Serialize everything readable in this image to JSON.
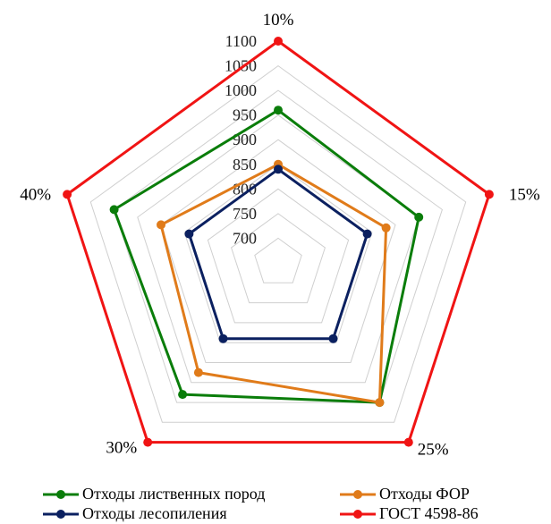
{
  "chart_data": {
    "type": "radar",
    "categories": [
      "10%",
      "15%",
      "25%",
      "30%",
      "40%"
    ],
    "r_ticks": [
      700,
      750,
      800,
      850,
      900,
      950,
      1000,
      1050,
      1100
    ],
    "rlim": [
      650,
      1100
    ],
    "grid": true,
    "legend_position": "bottom",
    "series": [
      {
        "name": "Отходы лиственных пород",
        "color": "#0a7d0a",
        "values": [
          960,
          950,
          1000,
          980,
          1000
        ]
      },
      {
        "name": "Отходы ФОР",
        "color": "#e07b1a",
        "values": [
          850,
          880,
          1000,
          925,
          900
        ]
      },
      {
        "name": "Отходы лесопиления",
        "color": "#0b2060",
        "values": [
          840,
          840,
          840,
          840,
          840
        ]
      },
      {
        "name": "ГОСТ 4598-86",
        "color": "#f01414",
        "values": [
          1100,
          1100,
          1100,
          1100,
          1100
        ]
      }
    ]
  }
}
